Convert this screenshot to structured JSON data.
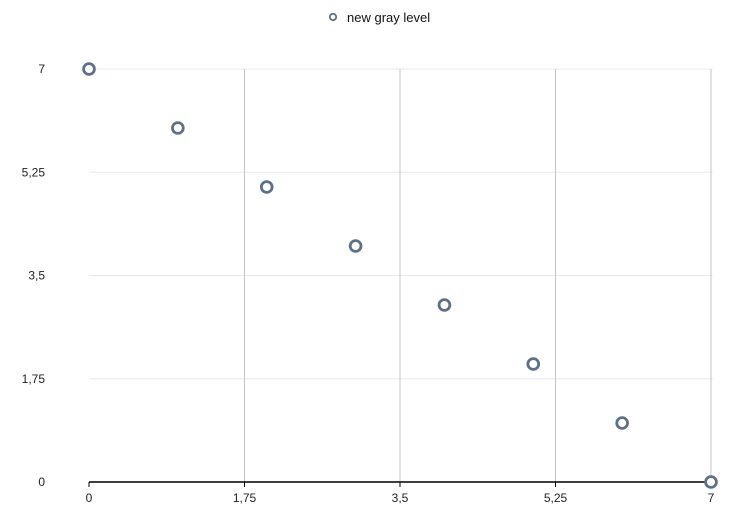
{
  "chart_data": {
    "type": "scatter",
    "title": "",
    "xlabel": "",
    "ylabel": "",
    "xlim": [
      0,
      7
    ],
    "ylim": [
      0,
      7
    ],
    "x_ticks": [
      0,
      1.75,
      3.5,
      5.25,
      7
    ],
    "y_ticks": [
      0,
      1.75,
      3.5,
      5.25,
      7
    ],
    "x_tick_labels": [
      "0",
      "1,75",
      "3,5",
      "5,25",
      "7"
    ],
    "y_tick_labels": [
      "0",
      "1,75",
      "3,5",
      "5,25",
      "7"
    ],
    "grid": {
      "vertical": true,
      "horizontal": true
    },
    "legend_position": "top-center",
    "colors": {
      "marker": "#5c7088",
      "vertical_grid": "#c4c4c4",
      "horizontal_grid": "#e8e8e8",
      "axis": "#000000"
    },
    "series": [
      {
        "name": "new gray level",
        "x": [
          0,
          1,
          2,
          3,
          4,
          5,
          6,
          7
        ],
        "y": [
          7,
          6,
          5,
          4,
          3,
          2,
          1,
          0
        ]
      }
    ]
  }
}
